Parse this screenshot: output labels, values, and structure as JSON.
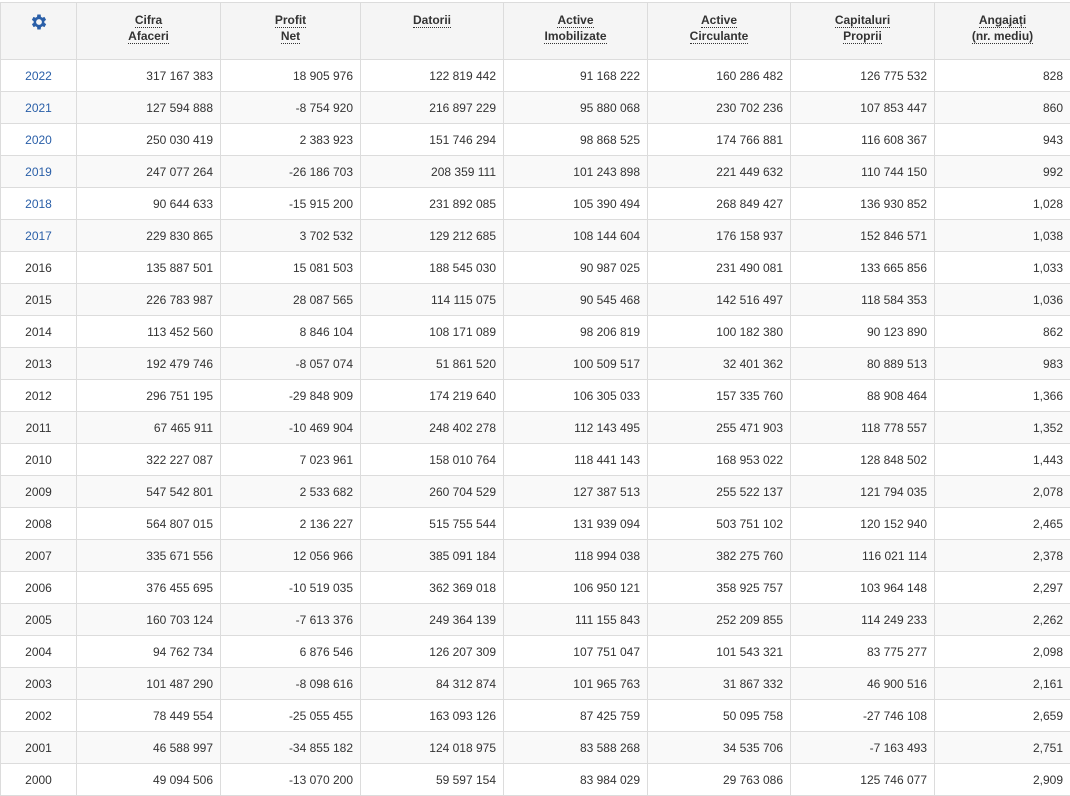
{
  "settings_icon": "gear-icon",
  "accent": "#2a5fa8",
  "columns": [
    {
      "l1": "Cifra",
      "l2": "Afaceri"
    },
    {
      "l1": "Profit",
      "l2": "Net"
    },
    {
      "l1": "Datorii",
      "l2": ""
    },
    {
      "l1": "Active",
      "l2": "Imobilizate"
    },
    {
      "l1": "Active",
      "l2": "Circulante"
    },
    {
      "l1": "Capitaluri",
      "l2": "Proprii"
    },
    {
      "l1": "Angajați",
      "l2": "(nr. mediu)"
    }
  ],
  "rows": [
    {
      "year": "2022",
      "link": true,
      "v": [
        "317 167 383",
        "18 905 976",
        "122 819 442",
        "91 168 222",
        "160 286 482",
        "126 775 532",
        "828"
      ]
    },
    {
      "year": "2021",
      "link": true,
      "v": [
        "127 594 888",
        "-8 754 920",
        "216 897 229",
        "95 880 068",
        "230 702 236",
        "107 853 447",
        "860"
      ]
    },
    {
      "year": "2020",
      "link": true,
      "v": [
        "250 030 419",
        "2 383 923",
        "151 746 294",
        "98 868 525",
        "174 766 881",
        "116 608 367",
        "943"
      ]
    },
    {
      "year": "2019",
      "link": true,
      "v": [
        "247 077 264",
        "-26 186 703",
        "208 359 111",
        "101 243 898",
        "221 449 632",
        "110 744 150",
        "992"
      ]
    },
    {
      "year": "2018",
      "link": true,
      "v": [
        "90 644 633",
        "-15 915 200",
        "231 892 085",
        "105 390 494",
        "268 849 427",
        "136 930 852",
        "1,028"
      ]
    },
    {
      "year": "2017",
      "link": true,
      "v": [
        "229 830 865",
        "3 702 532",
        "129 212 685",
        "108 144 604",
        "176 158 937",
        "152 846 571",
        "1,038"
      ]
    },
    {
      "year": "2016",
      "link": false,
      "v": [
        "135 887 501",
        "15 081 503",
        "188 545 030",
        "90 987 025",
        "231 490 081",
        "133 665 856",
        "1,033"
      ]
    },
    {
      "year": "2015",
      "link": false,
      "v": [
        "226 783 987",
        "28 087 565",
        "114 115 075",
        "90 545 468",
        "142 516 497",
        "118 584 353",
        "1,036"
      ]
    },
    {
      "year": "2014",
      "link": false,
      "v": [
        "113 452 560",
        "8 846 104",
        "108 171 089",
        "98 206 819",
        "100 182 380",
        "90 123 890",
        "862"
      ]
    },
    {
      "year": "2013",
      "link": false,
      "v": [
        "192 479 746",
        "-8 057 074",
        "51 861 520",
        "100 509 517",
        "32 401 362",
        "80 889 513",
        "983"
      ]
    },
    {
      "year": "2012",
      "link": false,
      "v": [
        "296 751 195",
        "-29 848 909",
        "174 219 640",
        "106 305 033",
        "157 335 760",
        "88 908 464",
        "1,366"
      ]
    },
    {
      "year": "2011",
      "link": false,
      "v": [
        "67 465 911",
        "-10 469 904",
        "248 402 278",
        "112 143 495",
        "255 471 903",
        "118 778 557",
        "1,352"
      ]
    },
    {
      "year": "2010",
      "link": false,
      "v": [
        "322 227 087",
        "7 023 961",
        "158 010 764",
        "118 441 143",
        "168 953 022",
        "128 848 502",
        "1,443"
      ]
    },
    {
      "year": "2009",
      "link": false,
      "v": [
        "547 542 801",
        "2 533 682",
        "260 704 529",
        "127 387 513",
        "255 522 137",
        "121 794 035",
        "2,078"
      ]
    },
    {
      "year": "2008",
      "link": false,
      "v": [
        "564 807 015",
        "2 136 227",
        "515 755 544",
        "131 939 094",
        "503 751 102",
        "120 152 940",
        "2,465"
      ]
    },
    {
      "year": "2007",
      "link": false,
      "v": [
        "335 671 556",
        "12 056 966",
        "385 091 184",
        "118 994 038",
        "382 275 760",
        "116 021 114",
        "2,378"
      ]
    },
    {
      "year": "2006",
      "link": false,
      "v": [
        "376 455 695",
        "-10 519 035",
        "362 369 018",
        "106 950 121",
        "358 925 757",
        "103 964 148",
        "2,297"
      ]
    },
    {
      "year": "2005",
      "link": false,
      "v": [
        "160 703 124",
        "-7 613 376",
        "249 364 139",
        "111 155 843",
        "252 209 855",
        "114 249 233",
        "2,262"
      ]
    },
    {
      "year": "2004",
      "link": false,
      "v": [
        "94 762 734",
        "6 876 546",
        "126 207 309",
        "107 751 047",
        "101 543 321",
        "83 775 277",
        "2,098"
      ]
    },
    {
      "year": "2003",
      "link": false,
      "v": [
        "101 487 290",
        "-8 098 616",
        "84 312 874",
        "101 965 763",
        "31 867 332",
        "46 900 516",
        "2,161"
      ]
    },
    {
      "year": "2002",
      "link": false,
      "v": [
        "78 449 554",
        "-25 055 455",
        "163 093 126",
        "87 425 759",
        "50 095 758",
        "-27 746 108",
        "2,659"
      ]
    },
    {
      "year": "2001",
      "link": false,
      "v": [
        "46 588 997",
        "-34 855 182",
        "124 018 975",
        "83 588 268",
        "34 535 706",
        "-7 163 493",
        "2,751"
      ]
    },
    {
      "year": "2000",
      "link": false,
      "v": [
        "49 094 506",
        "-13 070 200",
        "59 597 154",
        "83 984 029",
        "29 763 086",
        "125 746 077",
        "2,909"
      ]
    }
  ]
}
